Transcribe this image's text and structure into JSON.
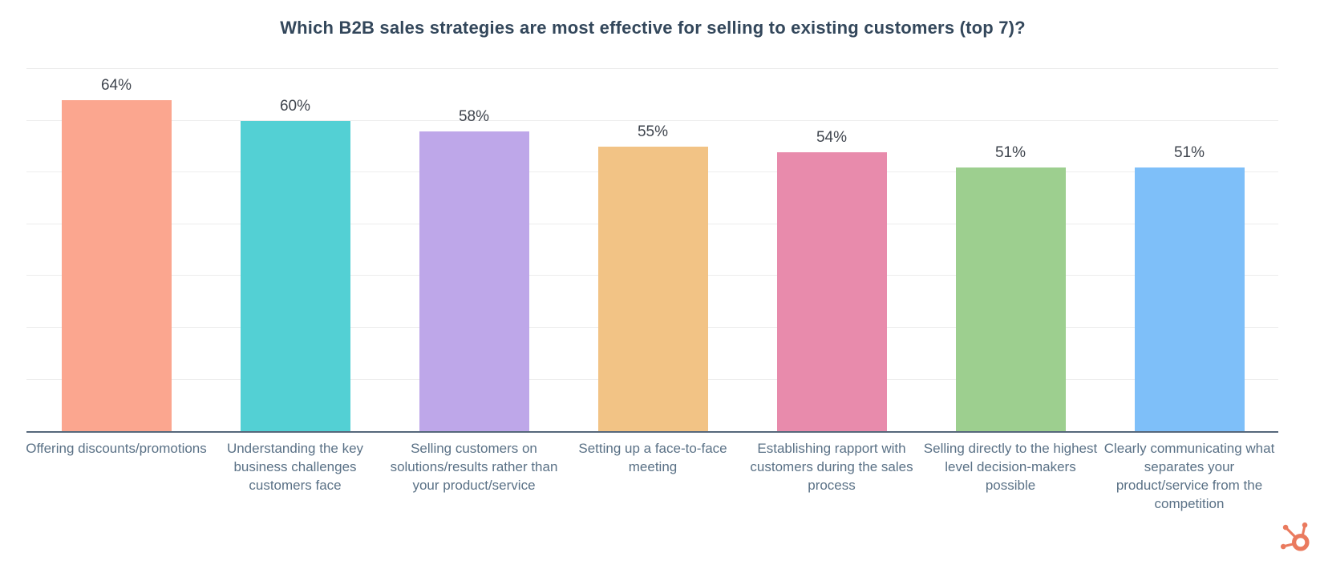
{
  "page": {
    "background": "#ffffff"
  },
  "chart_data": {
    "type": "bar",
    "title": "Which B2B sales strategies are most effective for selling to existing customers (top 7)?",
    "categories": [
      "Offering discounts/promotions",
      "Understanding the key business challenges customers face",
      "Selling customers on solutions/results rather than your product/service",
      "Setting up a face-to-face meeting",
      "Establishing rapport with customers during the sales process",
      "Selling directly to the highest level decision-makers possible",
      "Clearly communicating what separates your product/service from the competition"
    ],
    "values": [
      64,
      60,
      58,
      55,
      54,
      51,
      51
    ],
    "data_labels": [
      "64%",
      "60%",
      "58%",
      "55%",
      "54%",
      "51%",
      "51%"
    ],
    "bar_colors": [
      "#FBA68F",
      "#53D0D4",
      "#BEA7E9",
      "#F2C385",
      "#E88BAC",
      "#9DCF8F",
      "#7EBFF9"
    ],
    "xlabel": "",
    "ylabel": "",
    "ylim": [
      0,
      71
    ],
    "gridline_values": [
      10,
      20,
      30,
      40,
      50,
      60,
      70
    ],
    "grid": true,
    "legend": false,
    "y_tick_labels_visible": false
  },
  "colors": {
    "title": "#33475B",
    "value_label": "#3F454E",
    "category_label": "#5A7186",
    "gridline": "#EDEDED",
    "axis_line": "#56687B",
    "logo": "#EA7A5E"
  },
  "branding": {
    "logo": "hubspot-sprocket"
  }
}
